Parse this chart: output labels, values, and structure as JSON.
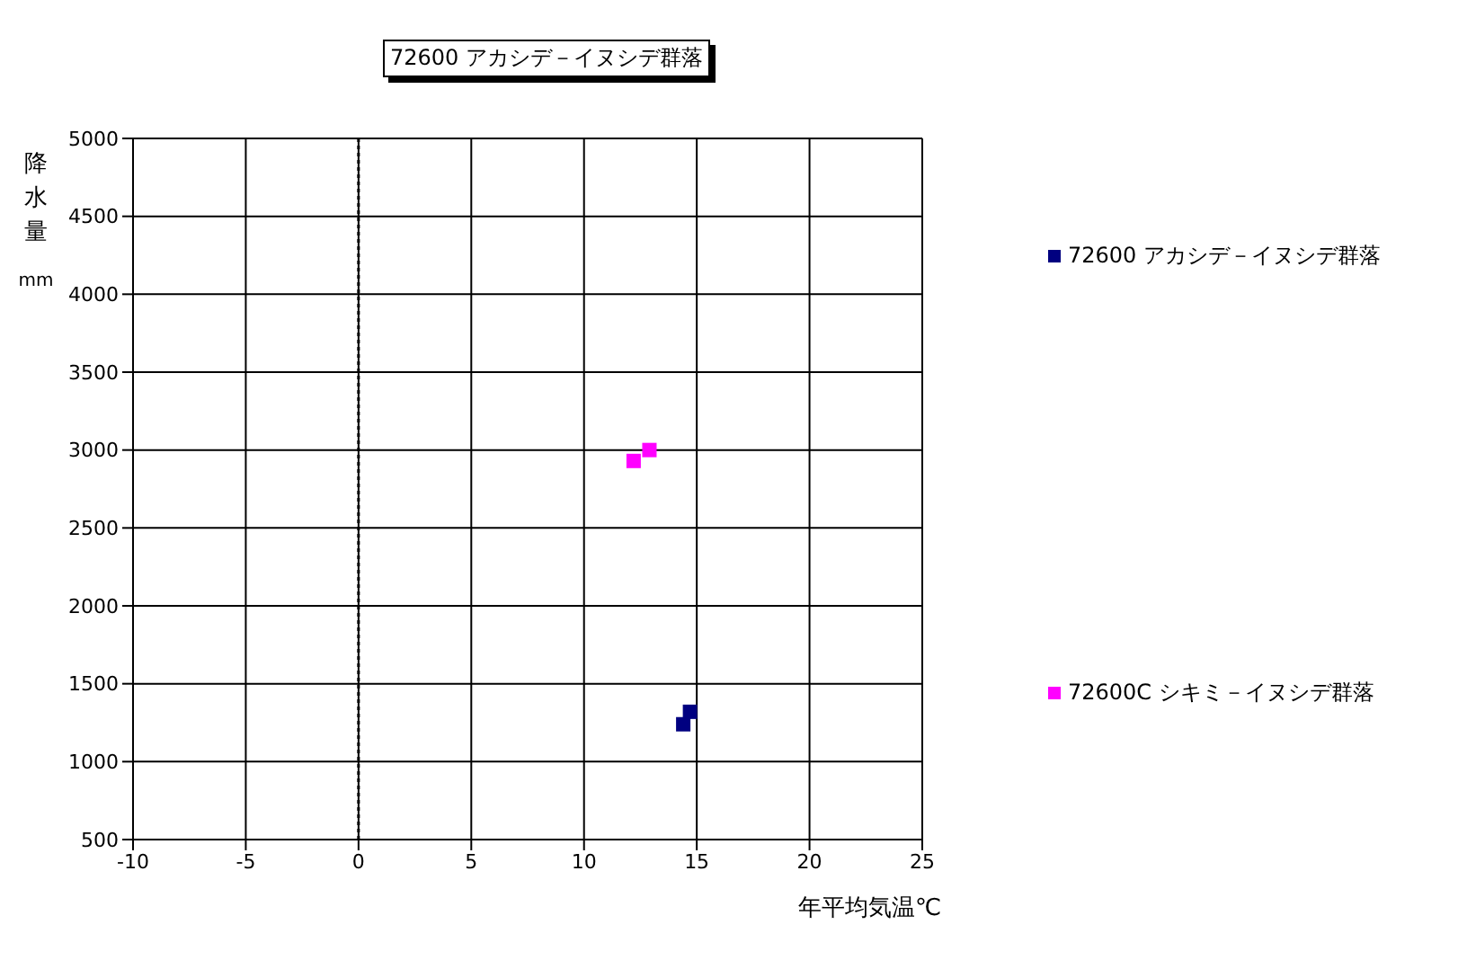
{
  "chart_data": {
    "type": "scatter",
    "title": "72600 アカシデ－イヌシデ群落",
    "xlabel": "年平均気温℃",
    "ylabel": "降水量 mm",
    "series": [
      {
        "name": "72600 アカシデ－イヌシデ群落",
        "color": "#000080",
        "x": [
          14.7,
          14.4
        ],
        "values": [
          1320,
          1240
        ]
      },
      {
        "name": "72600C シキミ－イヌシデ群落",
        "color": "#ff00ff",
        "x": [
          12.9,
          12.2
        ],
        "values": [
          3000,
          2930
        ]
      }
    ],
    "xlim": [
      -10,
      25
    ],
    "xticks": [
      -10,
      -5,
      0,
      5,
      10,
      15,
      20,
      25
    ],
    "ylim": [
      500,
      5000
    ],
    "yticks": [
      500,
      1000,
      1500,
      2000,
      2500,
      3000,
      3500,
      4000,
      4500,
      5000
    ],
    "grid": true,
    "legend": "right",
    "marker": "square",
    "ref_lines": [
      {
        "axis": "x",
        "value": 0,
        "line_style": "dotted"
      }
    ]
  }
}
